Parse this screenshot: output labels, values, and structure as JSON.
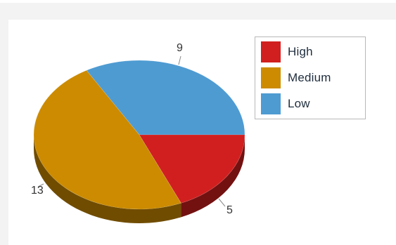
{
  "chart_data": {
    "type": "pie",
    "style": "3d",
    "title": "",
    "slices": [
      {
        "name": "High",
        "value": 5,
        "color": "#d11f1f"
      },
      {
        "name": "Medium",
        "value": 13,
        "color": "#cc8b00"
      },
      {
        "name": "Low",
        "value": 9,
        "color": "#4e9bd2"
      }
    ],
    "data_labels": [
      "5",
      "13",
      "9"
    ],
    "legend": {
      "position": "right",
      "entries": [
        "High",
        "Medium",
        "Low"
      ]
    }
  }
}
